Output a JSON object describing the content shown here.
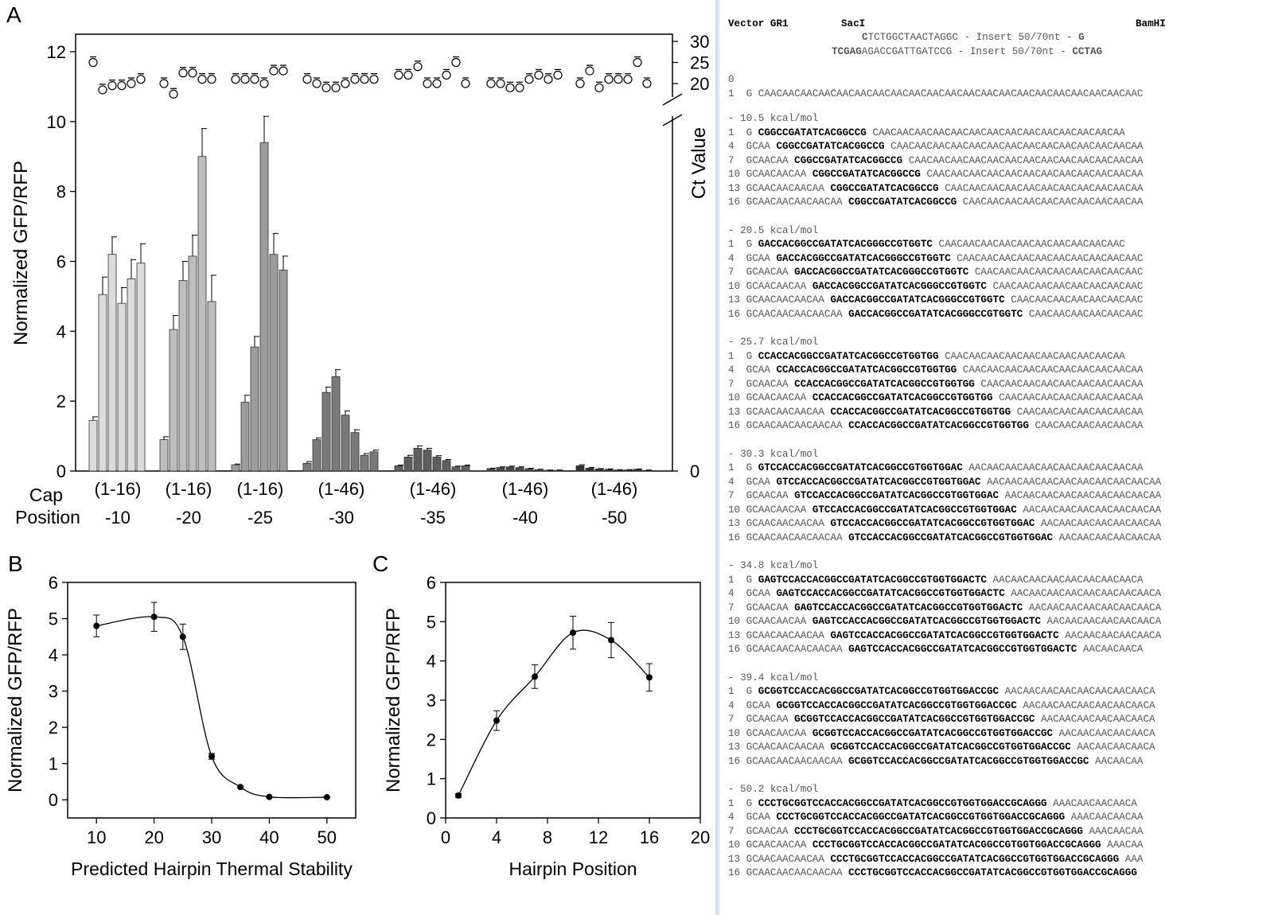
{
  "panel_labels": {
    "a": "A",
    "b": "B",
    "c": "C"
  },
  "chart_data": [
    {
      "type": "bar",
      "panel": "A",
      "ylabel": "Normalized GFP/RFP",
      "ylabel_right": "Ct Value",
      "ylim": [
        0,
        12.5
      ],
      "yticks": [
        0,
        2,
        4,
        6,
        8,
        10,
        12
      ],
      "right_ticks": [
        "30",
        "25",
        "20",
        "0"
      ],
      "row_labels": [
        "Cap",
        "Position"
      ],
      "groups": [
        {
          "range": "(1-16)",
          "position": "-10",
          "color": "#dcdcdc",
          "values": [
            1.45,
            5.05,
            6.2,
            4.8,
            5.5,
            5.95
          ],
          "errors": [
            0.1,
            0.5,
            0.5,
            0.45,
            0.55,
            0.55
          ],
          "ct": [
            25,
            18.5,
            19.5,
            19.5,
            20,
            21
          ]
        },
        {
          "range": "(1-16)",
          "position": "-20",
          "color": "#bdbdbd",
          "values": [
            0.9,
            4.05,
            5.45,
            6.15,
            9.0,
            4.85
          ],
          "errors": [
            0.08,
            0.4,
            0.55,
            0.6,
            0.8,
            0.75
          ],
          "ct": [
            20,
            17.5,
            22.5,
            22.5,
            21,
            21
          ]
        },
        {
          "range": "(1-16)",
          "position": "-25",
          "color": "#9c9c9c",
          "values": [
            0.18,
            1.97,
            3.55,
            9.4,
            6.2,
            5.75
          ],
          "errors": [
            0.02,
            0.2,
            0.3,
            0.75,
            0.6,
            0.4
          ],
          "ct": [
            21,
            21,
            21,
            20,
            23,
            23
          ]
        },
        {
          "range": "(1-46)",
          "position": "-30",
          "color": "#7a7a7a",
          "values": [
            0.22,
            0.9,
            2.25,
            2.7,
            1.6,
            1.1,
            0.45,
            0.55
          ],
          "errors": [
            0.05,
            0.05,
            0.15,
            0.2,
            0.12,
            0.08,
            0.05,
            0.05
          ],
          "ct": [
            21,
            20,
            19,
            19,
            20,
            21,
            21,
            21
          ]
        },
        {
          "range": "(1-46)",
          "position": "-35",
          "color": "#5f5f5f",
          "values": [
            0.15,
            0.4,
            0.65,
            0.6,
            0.4,
            0.3,
            0.12,
            0.15
          ],
          "errors": [
            0.02,
            0.05,
            0.07,
            0.05,
            0.04,
            0.03,
            0.02,
            0.02
          ],
          "ct": [
            22,
            22,
            24,
            20,
            20,
            22,
            25,
            20
          ]
        },
        {
          "range": "(1-46)",
          "position": "-40",
          "color": "#4a4a4a",
          "values": [
            0.07,
            0.1,
            0.12,
            0.1,
            0.07,
            0.04,
            0.02,
            0.02
          ],
          "errors": [
            0.01,
            0.02,
            0.02,
            0.02,
            0.01,
            0.01,
            0.01,
            0.01
          ],
          "ct": [
            20,
            20,
            19,
            19,
            21,
            22,
            21,
            22
          ]
        },
        {
          "range": "(1-46)",
          "position": "-50",
          "color": "#333333",
          "values": [
            0.15,
            0.08,
            0.06,
            0.05,
            0.03,
            0.03,
            0.05,
            0.02
          ],
          "errors": [
            0.03,
            0.02,
            0.01,
            0.01,
            0.01,
            0.01,
            0.01,
            0.01
          ],
          "ct": [
            20,
            23,
            19,
            21,
            21,
            21,
            25,
            20
          ]
        }
      ]
    },
    {
      "type": "line",
      "panel": "B",
      "xlabel": "Predicted Hairpin Thermal Stability",
      "ylabel": "Normalized GFP/RFP",
      "xlim": [
        5,
        55
      ],
      "ylim": [
        -0.5,
        6
      ],
      "xticks": [
        10,
        20,
        30,
        40,
        50
      ],
      "yticks": [
        0,
        1,
        2,
        3,
        4,
        5,
        6
      ],
      "x": [
        10,
        20,
        25,
        30,
        35,
        40,
        50
      ],
      "values": [
        4.8,
        5.05,
        4.5,
        1.2,
        0.35,
        0.08,
        0.07
      ],
      "errors": [
        0.3,
        0.4,
        0.35,
        0.08,
        0.03,
        0.01,
        0.01
      ]
    },
    {
      "type": "line",
      "panel": "C",
      "xlabel": "Hairpin Position",
      "ylabel": "Normalized GFP/RFP",
      "xlim": [
        0,
        20
      ],
      "ylim": [
        0,
        6
      ],
      "xticks": [
        0,
        4,
        8,
        12,
        16,
        20
      ],
      "yticks": [
        0,
        1,
        2,
        3,
        4,
        5,
        6
      ],
      "x": [
        1,
        4,
        7,
        10,
        13,
        16
      ],
      "values": [
        0.57,
        2.48,
        3.6,
        4.72,
        4.53,
        3.58
      ],
      "errors": [
        0.05,
        0.25,
        0.3,
        0.42,
        0.45,
        0.35
      ]
    }
  ],
  "sequences": {
    "header": {
      "vector": "Vector GR1",
      "saci": "SacI",
      "bamhi": "BamHI",
      "top_bold": "C",
      "top_rest": "TCTGGCTAACTAGGC - Insert 50/70nt - ",
      "top_end": "G",
      "bottom_bold": "TCGAG",
      "bottom_rest": "AGACCGATTGATCCG - Insert 50/70nt - ",
      "bottom_end": "CCTAG"
    },
    "blocks": [
      {
        "label": "0",
        "lines": [
          {
            "pre": "1  G ",
            "bold": "",
            "post": "CAACAACAACAACAACAACAACAACAACAACAACAACAACAACAACAACAACAACAACAACAAC"
          }
        ]
      },
      {
        "label": "- 10.5 kcal/mol",
        "lines": [
          {
            "pre": "1  G ",
            "bold": "CGGCCGATATCACGGCCG",
            "post": " CAACAACAACAACAACAACAACAACAACAACAACAACAACAA"
          },
          {
            "pre": "4  GCAA ",
            "bold": "CGGCCGATATCACGGCCG",
            "post": " CAACAACAACAACAACAACAACAACAACAACAACAACAACAA"
          },
          {
            "pre": "7  GCAACAA ",
            "bold": "CGGCCGATATCACGGCCG",
            "post": " CAACAACAACAACAACAACAACAACAACAACAACAACAA"
          },
          {
            "pre": "10 GCAACAACAA ",
            "bold": "CGGCCGATATCACGGCCG",
            "post": " CAACAACAACAACAACAACAACAACAACAACAACAA"
          },
          {
            "pre": "13 GCAACAACAACAA ",
            "bold": "CGGCCGATATCACGGCCG",
            "post": " CAACAACAACAACAACAACAACAACAACAACAA"
          },
          {
            "pre": "16 GCAACAACAACAACAA ",
            "bold": "CGGCCGATATCACGGCCG",
            "post": " CAACAACAACAACAACAACAACAACAACAA"
          }
        ]
      },
      {
        "label": "- 20.5 kcal/mol",
        "lines": [
          {
            "pre": "1  G ",
            "bold": "GACCACGGCCGATATCACGGGCCGTGGTC",
            "post": " CAACAACAACAACAACAACAACAACAACAAC"
          },
          {
            "pre": "4  GCAA ",
            "bold": "GACCACGGCCGATATCACGGGCCGTGGTC",
            "post": " CAACAACAACAACAACAACAACAACAACAAC"
          },
          {
            "pre": "7  GCAACAA ",
            "bold": "GACCACGGCCGATATCACGGGCCGTGGTC",
            "post": " CAACAACAACAACAACAACAACAACAAC"
          },
          {
            "pre": "10 GCAACAACAA ",
            "bold": "GACCACGGCCGATATCACGGGCCGTGGTC",
            "post": " CAACAACAACAACAACAACAACAAC"
          },
          {
            "pre": "13 GCAACAACAACAA ",
            "bold": "GACCACGGCCGATATCACGGGCCGTGGTC",
            "post": " CAACAACAACAACAACAACAAC"
          },
          {
            "pre": "16 GCAACAACAACAACAA ",
            "bold": "GACCACGGCCGATATCACGGGCCGTGGTC",
            "post": " CAACAACAACAACAACAAC"
          }
        ]
      },
      {
        "label": "- 25.7 kcal/mol",
        "lines": [
          {
            "pre": "1  G ",
            "bold": "CCACCACGGCCGATATCACGGCCGTGGTGG",
            "post": " CAACAACAACAACAACAACAACAACAACAA"
          },
          {
            "pre": "4  GCAA ",
            "bold": "CCACCACGGCCGATATCACGGCCGTGGTGG",
            "post": " CAACAACAACAACAACAACAACAACAACAA"
          },
          {
            "pre": "7  GCAACAA ",
            "bold": "CCACCACGGCCGATATCACGGCCGTGGTGG",
            "post": " CAACAACAACAACAACAACAACAACAA"
          },
          {
            "pre": "10 GCAACAACAA ",
            "bold": "CCACCACGGCCGATATCACGGCCGTGGTGG",
            "post": " CAACAACAACAACAACAACAACAA"
          },
          {
            "pre": "13 GCAACAACAACAA ",
            "bold": "CCACCACGGCCGATATCACGGCCGTGGTGG",
            "post": " CAACAACAACAACAACAACAA"
          },
          {
            "pre": "16 GCAACAACAACAACAA ",
            "bold": "CCACCACGGCCGATATCACGGCCGTGGTGG",
            "post": " CAACAACAACAACAACAA"
          }
        ]
      },
      {
        "label": "- 30.3 kcal/mol",
        "lines": [
          {
            "pre": "1  G ",
            "bold": "GTCCACCACGGCCGATATCACGGCCGTGGTGGAC",
            "post": " AACAACAACAACAACAACAACAACAACAA"
          },
          {
            "pre": "4  GCAA ",
            "bold": "GTCCACCACGGCCGATATCACGGCCGTGGTGGAC",
            "post": " AACAACAACAACAACAACAACAACAACAA"
          },
          {
            "pre": "7  GCAACAA ",
            "bold": "GTCCACCACGGCCGATATCACGGCCGTGGTGGAC",
            "post": " AACAACAACAACAACAACAACAACAA"
          },
          {
            "pre": "10 GCAACAACAA ",
            "bold": "GTCCACCACGGCCGATATCACGGCCGTGGTGGAC",
            "post": " AACAACAACAACAACAACAACAA"
          },
          {
            "pre": "13 GCAACAACAACAA ",
            "bold": "GTCCACCACGGCCGATATCACGGCCGTGGTGGAC",
            "post": " AACAACAACAACAACAACAA"
          },
          {
            "pre": "16 GCAACAACAACAACAA ",
            "bold": "GTCCACCACGGCCGATATCACGGCCGTGGTGGAC",
            "post": " AACAACAACAACAACAA"
          }
        ]
      },
      {
        "label": "- 34.8 kcal/mol",
        "lines": [
          {
            "pre": "1  G ",
            "bold": "GAGTCCACCACGGCCGATATCACGGCCGTGGTGGACTC",
            "post": " AACAACAACAACAACAACAACAACA"
          },
          {
            "pre": "4  GCAA ",
            "bold": "GAGTCCACCACGGCCGATATCACGGCCGTGGTGGACTC",
            "post": " AACAACAACAACAACAACAACAACA"
          },
          {
            "pre": "7  GCAACAA ",
            "bold": "GAGTCCACCACGGCCGATATCACGGCCGTGGTGGACTC",
            "post": " AACAACAACAACAACAACAACA"
          },
          {
            "pre": "10 GCAACAACAA ",
            "bold": "GAGTCCACCACGGCCGATATCACGGCCGTGGTGGACTC",
            "post": " AACAACAACAACAACAACA"
          },
          {
            "pre": "13 GCAACAACAACAA ",
            "bold": "GAGTCCACCACGGCCGATATCACGGCCGTGGTGGACTC",
            "post": " AACAACAACAACAACA"
          },
          {
            "pre": "16 GCAACAACAACAACAA ",
            "bold": "GAGTCCACCACGGCCGATATCACGGCCGTGGTGGACTC",
            "post": " AACAACAACA"
          }
        ]
      },
      {
        "label": "- 39.4 kcal/mol",
        "lines": [
          {
            "pre": "1  G ",
            "bold": "GCGGTCCACCACGGCCGATATCACGGCCGTGGTGGACCGC",
            "post": " AACAACAACAACAACAACAACAACA"
          },
          {
            "pre": "4  GCAA ",
            "bold": "GCGGTCCACCACGGCCGATATCACGGCCGTGGTGGACCGC",
            "post": " AACAACAACAACAACAACAACA"
          },
          {
            "pre": "7  GCAACAA ",
            "bold": "GCGGTCCACCACGGCCGATATCACGGCCGTGGTGGACCGC",
            "post": " AACAACAACAACAACAACA"
          },
          {
            "pre": "10 GCAACAACAA ",
            "bold": "GCGGTCCACCACGGCCGATATCACGGCCGTGGTGGACCGC",
            "post": " AACAACAACAACAACA"
          },
          {
            "pre": "13 GCAACAACAACAA ",
            "bold": "GCGGTCCACCACGGCCGATATCACGGCCGTGGTGGACCGC",
            "post": " AACAACAACAACA"
          },
          {
            "pre": "16 GCAACAACAACAACAA ",
            "bold": "GCGGTCCACCACGGCCGATATCACGGCCGTGGTGGACCGC",
            "post": " AACAACAA"
          }
        ]
      },
      {
        "label": "- 50.2 kcal/mol",
        "lines": [
          {
            "pre": "1  G ",
            "bold": "CCCTGCGGTCCACCACGGCCGATATCACGGCCGTGGTGGACCGCAGGG",
            "post": " AAACAACAACAACA"
          },
          {
            "pre": "4  GCAA ",
            "bold": "CCCTGCGGTCCACCACGGCCGATATCACGGCCGTGGTGGACCGCAGGG",
            "post": " AAACAACAACAA"
          },
          {
            "pre": "7  GCAACAA ",
            "bold": "CCCTGCGGTCCACCACGGCCGATATCACGGCCGTGGTGGACCGCAGGG",
            "post": " AAACAACAA"
          },
          {
            "pre": "10 GCAACAACAA ",
            "bold": "CCCTGCGGTCCACCACGGCCGATATCACGGCCGTGGTGGACCGCAGGG",
            "post": " AAACAA"
          },
          {
            "pre": "13 GCAACAACAACAA ",
            "bold": "CCCTGCGGTCCACCACGGCCGATATCACGGCCGTGGTGGACCGCAGGG",
            "post": " AAA"
          },
          {
            "pre": "16 GCAACAACAACAACAA ",
            "bold": "CCCTGCGGTCCACCACGGCCGATATCACGGCCGTGGTGGACCGCAGGG",
            "post": ""
          }
        ]
      }
    ]
  }
}
